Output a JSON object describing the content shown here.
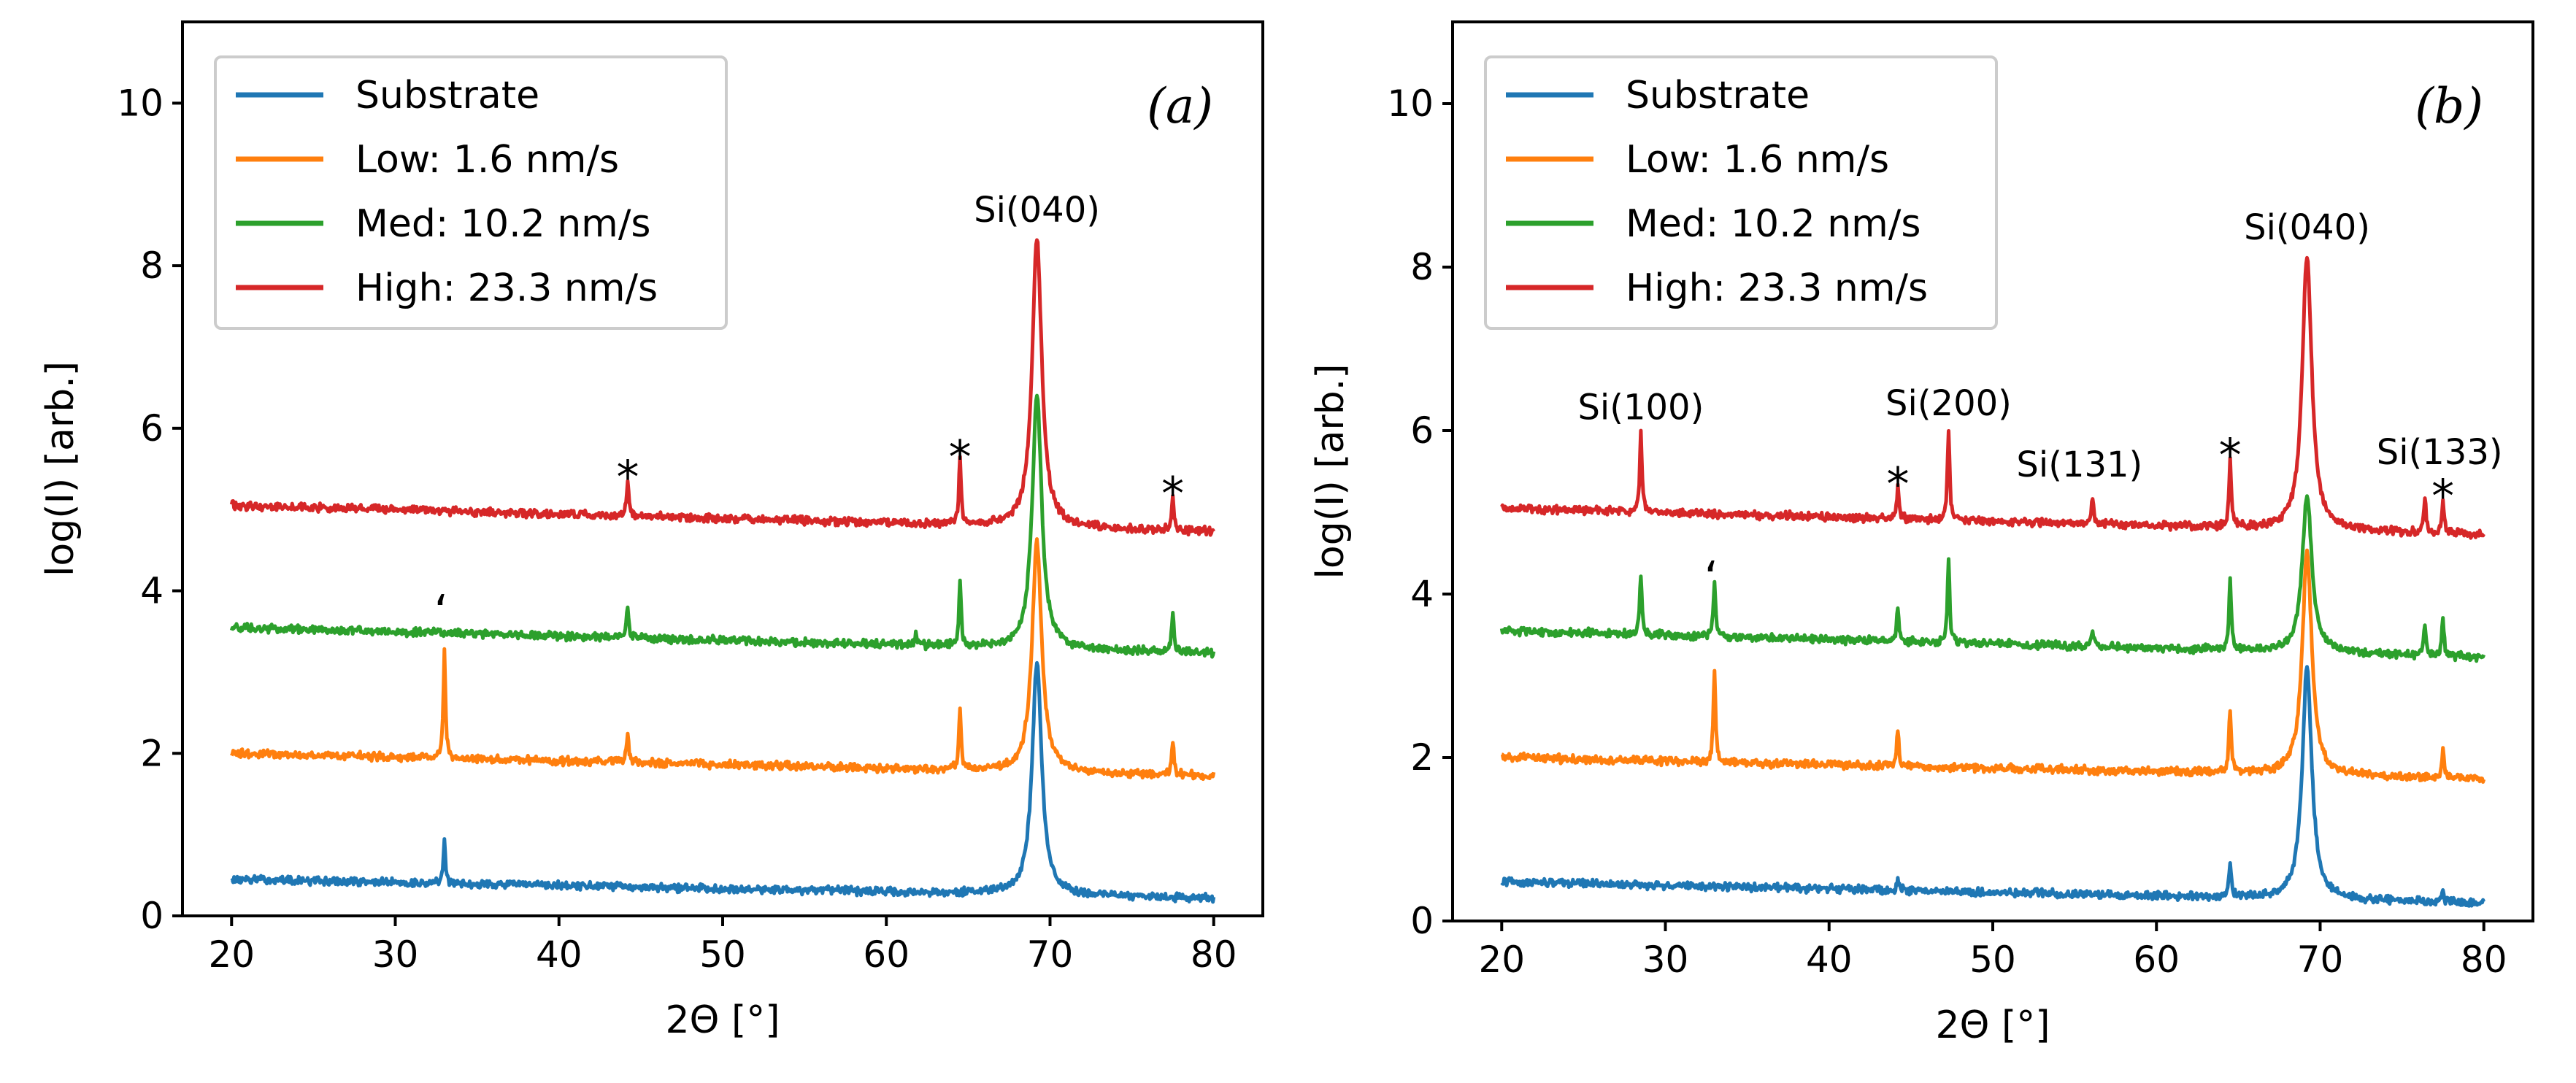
{
  "chart_data": [
    {
      "type": "line",
      "panel_label": "(a)",
      "xlabel": "2Θ [°]",
      "ylabel": "log(I) [arb.]",
      "xlim": [
        17,
        83
      ],
      "ylim": [
        0,
        11
      ],
      "xticks": [
        20,
        30,
        40,
        50,
        60,
        70,
        80
      ],
      "yticks": [
        0,
        2,
        4,
        6,
        8,
        10
      ],
      "legend_position": "top-left",
      "series": [
        {
          "name": "Substrate",
          "color": "#1f77b4",
          "baseline_start": 0.45,
          "baseline_end": 0.22,
          "noise": 0.06,
          "peaks": [
            {
              "x": 33.0,
              "h": 0.9
            },
            {
              "x": 69.2,
              "h": 3.1
            }
          ]
        },
        {
          "name": "Low: 1.6 nm/s",
          "color": "#ff7f0e",
          "baseline_start": 2.0,
          "baseline_end": 1.72,
          "noise": 0.06,
          "peaks": [
            {
              "x": 33.0,
              "h": 3.25
            },
            {
              "x": 44.2,
              "h": 2.25
            },
            {
              "x": 64.5,
              "h": 2.55
            },
            {
              "x": 69.2,
              "h": 4.6
            },
            {
              "x": 77.5,
              "h": 2.15
            }
          ]
        },
        {
          "name": "Med: 10.2 nm/s",
          "color": "#2ca02c",
          "baseline_start": 3.55,
          "baseline_end": 3.23,
          "noise": 0.06,
          "peaks": [
            {
              "x": 44.2,
              "h": 3.8
            },
            {
              "x": 61.8,
              "h": 3.45
            },
            {
              "x": 64.5,
              "h": 4.1
            },
            {
              "x": 69.2,
              "h": 6.4
            },
            {
              "x": 77.5,
              "h": 3.7
            }
          ]
        },
        {
          "name": "High: 23.3 nm/s",
          "color": "#d62728",
          "baseline_start": 5.05,
          "baseline_end": 4.73,
          "noise": 0.06,
          "peaks": [
            {
              "x": 44.2,
              "h": 5.35
            },
            {
              "x": 64.5,
              "h": 5.6
            },
            {
              "x": 69.2,
              "h": 8.35
            },
            {
              "x": 77.5,
              "h": 5.15
            }
          ]
        }
      ],
      "annotations": [
        {
          "text": "Si(040)",
          "x": 69.2,
          "y": 8.45,
          "kind": "label"
        },
        {
          "text": "*",
          "x": 44.2,
          "y": 5.4,
          "kind": "star"
        },
        {
          "text": "*",
          "x": 64.5,
          "y": 5.65,
          "kind": "star"
        },
        {
          "text": "*",
          "x": 77.5,
          "y": 5.2,
          "kind": "star"
        },
        {
          "text": "‘",
          "x": 32.8,
          "y": 3.75,
          "kind": "tick-mark"
        }
      ]
    },
    {
      "type": "line",
      "panel_label": "(b)",
      "xlabel": "2Θ [°]",
      "ylabel": "log(I) [arb.]",
      "xlim": [
        17,
        83
      ],
      "ylim": [
        0,
        11
      ],
      "xticks": [
        20,
        30,
        40,
        50,
        60,
        70,
        80
      ],
      "yticks": [
        0,
        2,
        4,
        6,
        8,
        10
      ],
      "legend_position": "top-left",
      "series": [
        {
          "name": "Substrate",
          "color": "#1f77b4",
          "baseline_start": 0.48,
          "baseline_end": 0.22,
          "noise": 0.06,
          "peaks": [
            {
              "x": 44.2,
              "h": 0.5
            },
            {
              "x": 64.5,
              "h": 0.7
            },
            {
              "x": 69.2,
              "h": 3.1
            },
            {
              "x": 77.5,
              "h": 0.35
            }
          ]
        },
        {
          "name": "Low: 1.6 nm/s",
          "color": "#ff7f0e",
          "baseline_start": 2.0,
          "baseline_end": 1.74,
          "noise": 0.06,
          "peaks": [
            {
              "x": 33.0,
              "h": 3.05
            },
            {
              "x": 44.2,
              "h": 2.35
            },
            {
              "x": 64.5,
              "h": 2.6
            },
            {
              "x": 69.2,
              "h": 4.5
            },
            {
              "x": 77.5,
              "h": 2.1
            }
          ]
        },
        {
          "name": "Med: 10.2 nm/s",
          "color": "#2ca02c",
          "baseline_start": 3.55,
          "baseline_end": 3.23,
          "noise": 0.06,
          "peaks": [
            {
              "x": 28.5,
              "h": 4.25
            },
            {
              "x": 33.0,
              "h": 4.15
            },
            {
              "x": 44.2,
              "h": 3.85
            },
            {
              "x": 47.3,
              "h": 4.4
            },
            {
              "x": 56.1,
              "h": 3.55
            },
            {
              "x": 64.5,
              "h": 4.15
            },
            {
              "x": 69.2,
              "h": 5.2
            },
            {
              "x": 76.4,
              "h": 3.65
            },
            {
              "x": 77.5,
              "h": 3.7
            }
          ]
        },
        {
          "name": "High: 23.3 nm/s",
          "color": "#d62728",
          "baseline_start": 5.05,
          "baseline_end": 4.73,
          "noise": 0.06,
          "peaks": [
            {
              "x": 28.5,
              "h": 5.95
            },
            {
              "x": 44.2,
              "h": 5.3
            },
            {
              "x": 47.3,
              "h": 6.0
            },
            {
              "x": 56.1,
              "h": 5.2
            },
            {
              "x": 64.5,
              "h": 5.65
            },
            {
              "x": 69.2,
              "h": 8.15
            },
            {
              "x": 76.4,
              "h": 5.2
            },
            {
              "x": 77.5,
              "h": 5.15
            }
          ]
        }
      ],
      "annotations": [
        {
          "text": "Si(040)",
          "x": 69.2,
          "y": 8.25,
          "kind": "label"
        },
        {
          "text": "Si(100)",
          "x": 28.5,
          "y": 6.05,
          "kind": "label"
        },
        {
          "text": "Si(200)",
          "x": 47.3,
          "y": 6.1,
          "kind": "label"
        },
        {
          "text": "Si(131)",
          "x": 55.3,
          "y": 5.35,
          "kind": "label"
        },
        {
          "text": "Si(133)",
          "x": 77.3,
          "y": 5.5,
          "kind": "label"
        },
        {
          "text": "*",
          "x": 44.2,
          "y": 5.35,
          "kind": "star"
        },
        {
          "text": "*",
          "x": 64.5,
          "y": 5.7,
          "kind": "star"
        },
        {
          "text": "*",
          "x": 77.5,
          "y": 5.2,
          "kind": "star"
        },
        {
          "text": "‘",
          "x": 32.8,
          "y": 4.2,
          "kind": "tick-mark"
        }
      ]
    }
  ]
}
